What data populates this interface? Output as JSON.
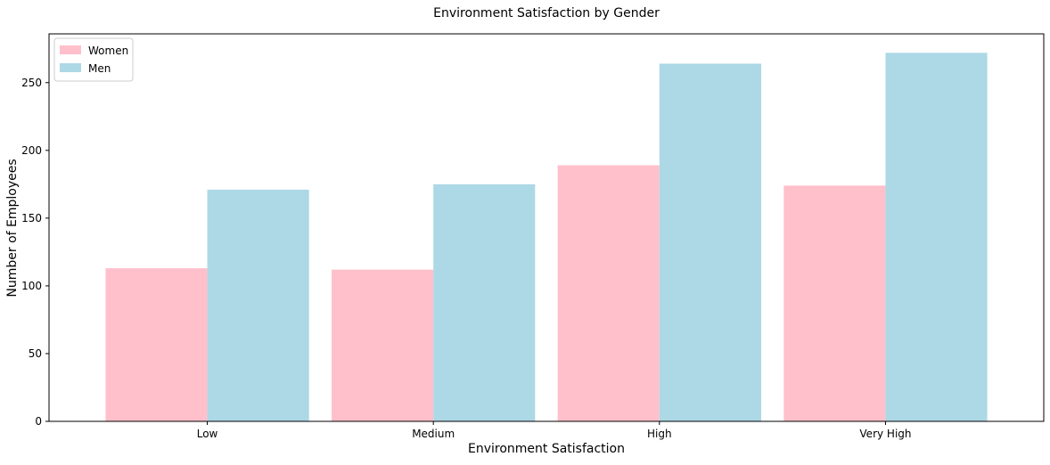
{
  "chart_data": {
    "type": "bar",
    "title": "Environment Satisfaction by Gender",
    "xlabel": "Environment Satisfaction",
    "ylabel": "Number of Employees",
    "categories": [
      "Low",
      "Medium",
      "High",
      "Very High"
    ],
    "series": [
      {
        "name": "Women",
        "color": "#ffc0cb",
        "values": [
          113,
          112,
          189,
          174
        ]
      },
      {
        "name": "Men",
        "color": "#add8e6",
        "values": [
          171,
          175,
          264,
          272
        ]
      }
    ],
    "ylim": [
      0,
      286
    ],
    "yticks": [
      0,
      50,
      100,
      150,
      200,
      250
    ],
    "grid": false,
    "legend": "top-left"
  }
}
